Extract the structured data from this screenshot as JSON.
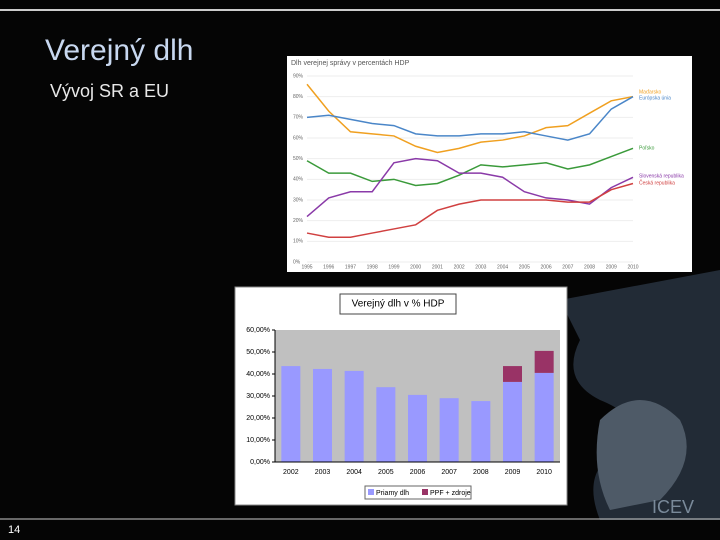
{
  "slide": {
    "title": "Verejný dlh",
    "subtitle": "Vývoj SR a EU",
    "page_number": "14",
    "logo": "ICEV"
  },
  "chart_data": [
    {
      "type": "line",
      "title": "Dlh verejnej správy v percentách HDP",
      "categories": [
        "1995",
        "1996",
        "1997",
        "1998",
        "1999",
        "2000",
        "2001",
        "2002",
        "2003",
        "2004",
        "2005",
        "2006",
        "2007",
        "2008",
        "2009",
        "2010"
      ],
      "series": [
        {
          "name": "Maďarsko",
          "color": "#f0a020",
          "values": [
            86,
            73,
            63,
            62,
            61,
            56,
            53,
            55,
            58,
            59,
            61,
            65,
            66,
            72,
            78,
            80
          ]
        },
        {
          "name": "Európska únia",
          "color": "#4a86c8",
          "values": [
            70,
            71,
            69,
            67,
            66,
            62,
            61,
            61,
            62,
            62,
            63,
            61,
            59,
            62,
            74,
            80
          ]
        },
        {
          "name": "Poľsko",
          "color": "#3a9a3a",
          "values": [
            49,
            43,
            43,
            39,
            40,
            37,
            38,
            42,
            47,
            46,
            47,
            48,
            45,
            47,
            51,
            55
          ]
        },
        {
          "name": "Slovenská republika",
          "color": "#8a3aa8",
          "values": [
            22,
            31,
            34,
            34,
            48,
            50,
            49,
            43,
            43,
            41,
            34,
            31,
            30,
            28,
            36,
            41
          ]
        },
        {
          "name": "Česká republika",
          "color": "#d04040",
          "values": [
            14,
            12,
            12,
            14,
            16,
            18,
            25,
            28,
            30,
            30,
            30,
            30,
            29,
            29,
            35,
            38
          ]
        }
      ],
      "ylim": [
        0,
        90
      ],
      "yticks": [
        {
          "value": 0,
          "label": "0%"
        },
        {
          "value": 10,
          "label": "10%"
        },
        {
          "value": 20,
          "label": "20%"
        },
        {
          "value": 30,
          "label": "30%"
        },
        {
          "value": 40,
          "label": "40%"
        },
        {
          "value": 50,
          "label": "50%"
        },
        {
          "value": 60,
          "label": "60%"
        },
        {
          "value": 70,
          "label": "70%"
        },
        {
          "value": 80,
          "label": "80%"
        },
        {
          "value": 90,
          "label": "90%"
        }
      ]
    },
    {
      "type": "stacked-bar",
      "title": "Verejný dlh v % HDP",
      "categories": [
        "2002",
        "2003",
        "2004",
        "2005",
        "2006",
        "2007",
        "2008",
        "2009",
        "2010"
      ],
      "series": [
        {
          "name": "Priamy dlh",
          "color": "#9999ff",
          "values": [
            43.6,
            42.3,
            41.4,
            34,
            30.5,
            29,
            27.7,
            36.4,
            40.5
          ]
        },
        {
          "name": "PPF + zdroje",
          "color": "#993366",
          "values": [
            0,
            0,
            0,
            0,
            0,
            0,
            0,
            7.2,
            10
          ]
        }
      ],
      "ylim": [
        0,
        60
      ],
      "yticks": [
        {
          "value": 0,
          "label": "0,00%"
        },
        {
          "value": 10,
          "label": "10,00%"
        },
        {
          "value": 20,
          "label": "20,00%"
        },
        {
          "value": 30,
          "label": "30,00%"
        },
        {
          "value": 40,
          "label": "40,00%"
        },
        {
          "value": 50,
          "label": "50,00%"
        },
        {
          "value": 60,
          "label": "60,00%"
        }
      ]
    }
  ]
}
